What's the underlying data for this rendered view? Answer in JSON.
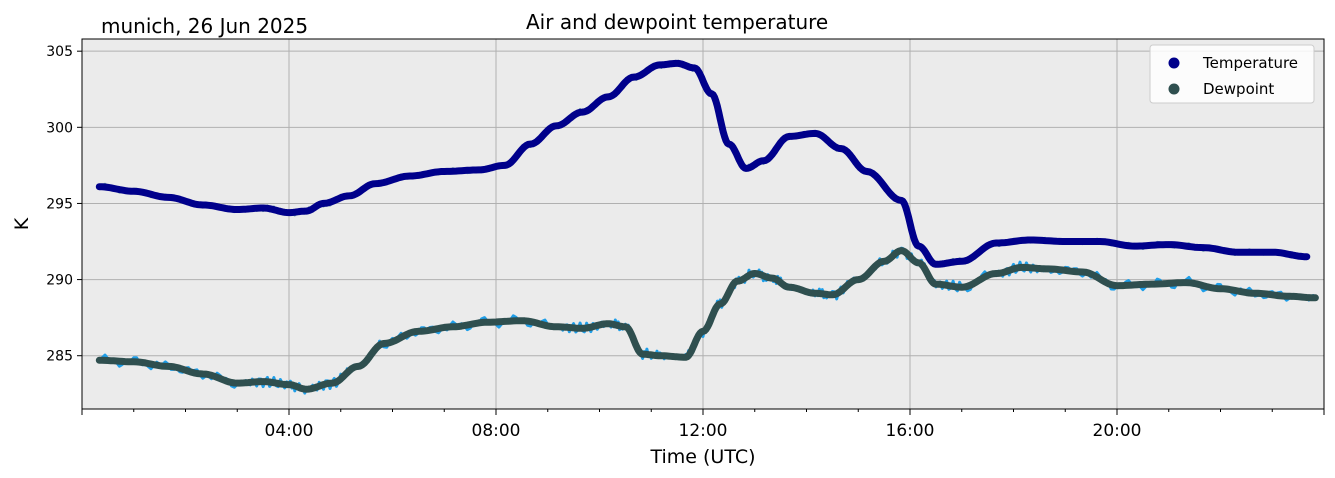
{
  "chart_data": {
    "type": "line",
    "title": "Air and dewpoint temperature",
    "subtitle": "munich, 26 Jun 2025",
    "xlabel": "Time (UTC)",
    "ylabel": "K",
    "xlim": [
      "00:00",
      "24:00"
    ],
    "ylim": [
      281.5,
      305.8
    ],
    "x_ticks": [
      "04:00",
      "08:00",
      "12:00",
      "16:00",
      "20:00"
    ],
    "y_ticks": [
      285,
      290,
      295,
      300,
      305
    ],
    "grid": true,
    "legend": {
      "position": "upper-right",
      "entries": [
        "Temperature",
        "Dewpoint"
      ]
    },
    "colors": {
      "background": "#ebebeb",
      "grid": "#b0b0b0",
      "temperature": "#00008b",
      "temperature_raw": "#6fa3a8",
      "dewpoint": "#2f4f4f",
      "dewpoint_raw": "#1e9ee8"
    },
    "series": [
      {
        "name": "Temperature",
        "x": [
          "00:20",
          "01:00",
          "01:40",
          "02:20",
          "03:00",
          "03:30",
          "04:00",
          "04:20",
          "04:40",
          "05:10",
          "05:40",
          "06:20",
          "07:00",
          "07:40",
          "08:10",
          "08:40",
          "09:10",
          "09:40",
          "10:10",
          "10:40",
          "11:10",
          "11:30",
          "11:50",
          "12:10",
          "12:30",
          "12:50",
          "13:10",
          "13:40",
          "14:10",
          "14:40",
          "15:10",
          "15:50",
          "16:10",
          "16:30",
          "17:00",
          "17:40",
          "18:20",
          "19:00",
          "19:40",
          "20:20",
          "21:00",
          "21:40",
          "22:20",
          "23:00",
          "23:40"
        ],
        "values": [
          296.1,
          295.8,
          295.4,
          294.9,
          294.6,
          294.7,
          294.4,
          294.5,
          295.0,
          295.5,
          296.3,
          296.8,
          297.1,
          297.2,
          297.5,
          298.9,
          300.1,
          301.0,
          302.0,
          303.3,
          304.1,
          304.2,
          303.9,
          302.2,
          298.9,
          297.3,
          297.8,
          299.4,
          299.6,
          298.6,
          297.1,
          295.2,
          292.2,
          291.0,
          291.2,
          292.4,
          292.6,
          292.5,
          292.5,
          292.2,
          292.3,
          292.1,
          291.8,
          291.8,
          291.5
        ]
      },
      {
        "name": "Dewpoint",
        "x": [
          "00:20",
          "01:00",
          "01:40",
          "02:20",
          "03:00",
          "03:30",
          "04:00",
          "04:20",
          "04:50",
          "05:20",
          "05:50",
          "06:30",
          "07:10",
          "07:50",
          "08:30",
          "09:10",
          "09:40",
          "10:10",
          "10:30",
          "10:50",
          "11:10",
          "11:40",
          "12:00",
          "12:20",
          "12:40",
          "13:00",
          "13:20",
          "13:40",
          "14:10",
          "14:30",
          "15:00",
          "15:30",
          "15:50",
          "16:10",
          "16:30",
          "17:00",
          "17:40",
          "18:10",
          "18:40",
          "19:20",
          "20:00",
          "20:40",
          "21:20",
          "22:00",
          "22:40",
          "23:20",
          "23:50"
        ],
        "values": [
          284.7,
          284.6,
          284.3,
          283.8,
          283.2,
          283.3,
          283.1,
          282.8,
          283.2,
          284.3,
          285.8,
          286.6,
          286.9,
          287.2,
          287.3,
          286.9,
          286.8,
          287.1,
          286.9,
          285.1,
          285.0,
          284.9,
          286.6,
          288.4,
          289.9,
          290.4,
          290.1,
          289.5,
          289.1,
          289.0,
          290.0,
          291.2,
          291.9,
          291.1,
          289.7,
          289.5,
          290.4,
          290.8,
          290.7,
          290.5,
          289.6,
          289.7,
          289.8,
          289.4,
          289.1,
          288.9,
          288.8
        ]
      }
    ]
  }
}
